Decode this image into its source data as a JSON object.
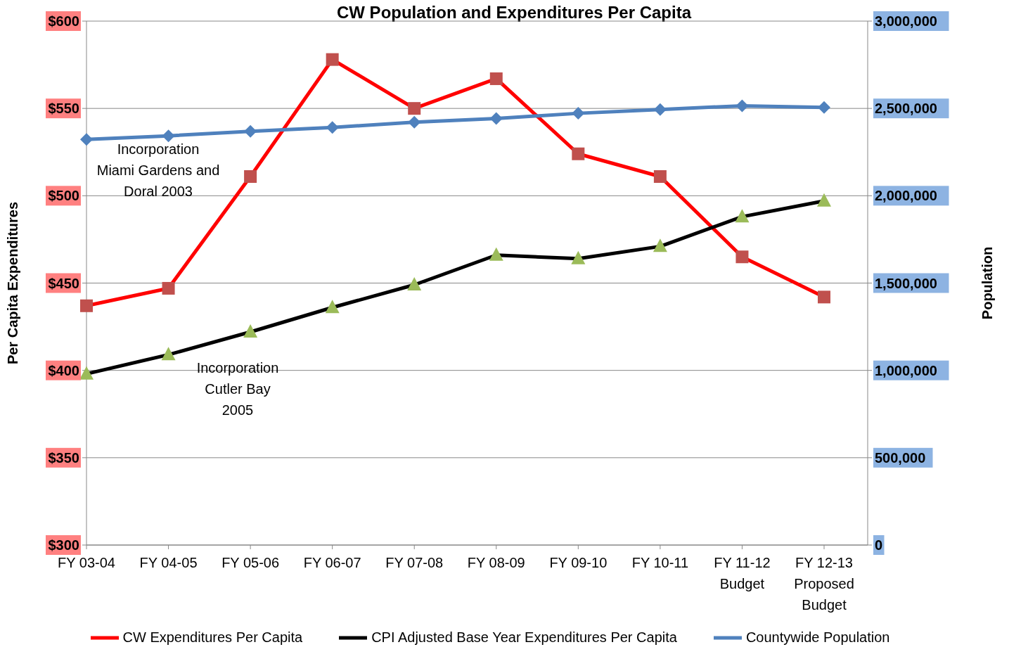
{
  "chart_data": {
    "type": "line",
    "title": "CW Population and Expenditures Per Capita",
    "ylabel": "Per Capita Expenditures",
    "y2label": "Population",
    "categories": [
      "FY 03-04",
      "FY 04-05",
      "FY 05-06",
      "FY 06-07",
      "FY 07-08",
      "FY 08-09",
      "FY 09-10",
      "FY 10-11",
      "FY 11-12\nBudget",
      "FY 12-13\nProposed\nBudget"
    ],
    "series": [
      {
        "name": "CW Expenditures Per Capita",
        "color": "#ff0000",
        "marker": "square",
        "values": [
          437,
          447,
          511,
          578,
          550,
          567,
          524,
          511,
          465,
          442
        ]
      },
      {
        "name": "CPI Adjusted Base Year Expenditures Per Capita",
        "color": "#000000",
        "marker": "triangle",
        "values": [
          398,
          409,
          422,
          436,
          449,
          466,
          464,
          471,
          488,
          497
        ]
      },
      {
        "name": "Countywide Population",
        "color": "#4f81bd",
        "marker": "diamond",
        "axis": "y2",
        "values": [
          2322000,
          2343000,
          2369000,
          2391000,
          2421000,
          2442000,
          2472000,
          2494000,
          2515000,
          2506000
        ]
      }
    ],
    "ylim": [
      300,
      600
    ],
    "yticks": [
      {
        "value": 300,
        "label": "$300"
      },
      {
        "value": 350,
        "label": "$350"
      },
      {
        "value": 400,
        "label": "$400"
      },
      {
        "value": 450,
        "label": "$450"
      },
      {
        "value": 500,
        "label": "$500"
      },
      {
        "value": 550,
        "label": "$550"
      },
      {
        "value": 600,
        "label": "$600"
      }
    ],
    "y2lim": [
      0,
      3000000
    ],
    "y2ticks": [
      {
        "value": 0,
        "label": "0"
      },
      {
        "value": 500000,
        "label": "500,000"
      },
      {
        "value": 1000000,
        "label": "1,000,000"
      },
      {
        "value": 1500000,
        "label": "1,500,000"
      },
      {
        "value": 2000000,
        "label": "2,000,000"
      },
      {
        "value": 2500000,
        "label": "2,500,000"
      },
      {
        "value": 3000000,
        "label": "3,000,000"
      }
    ],
    "annotations": [
      "Incorporation\nMiami Gardens and\nDoral 2003",
      "Incorporation\nCutler Bay\n2005"
    ],
    "grid": "y",
    "legend": "bottom",
    "line_style": "solid"
  }
}
